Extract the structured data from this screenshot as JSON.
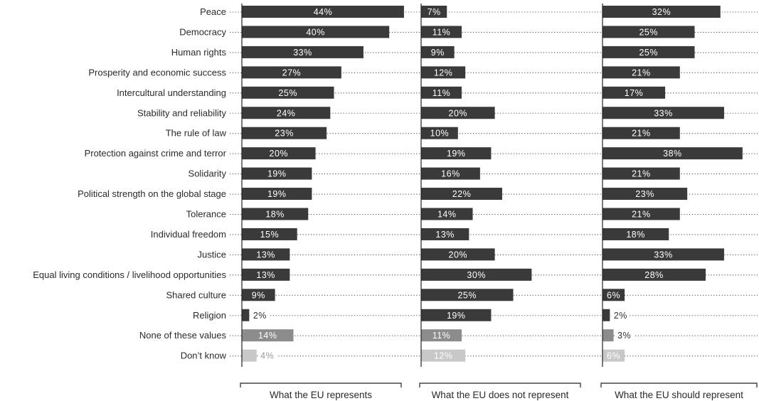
{
  "chart_data": {
    "type": "bar",
    "orientation": "horizontal",
    "value_suffix": "%",
    "grid": "dotted leader lines",
    "legend": "none",
    "categories": [
      "Peace",
      "Democracy",
      "Human rights",
      "Prosperity and economic success",
      "Intercultural understanding",
      "Stability and reliability",
      "The rule of law",
      "Protection against crime and terror",
      "Solidarity",
      "Political strength on the global stage",
      "Tolerance",
      "Individual freedom",
      "Justice",
      "Equal living conditions / livelihood opportunities",
      "Shared culture",
      "Religion",
      "None of these values",
      "Don’t know"
    ],
    "series": [
      {
        "name": "What the EU represents",
        "values": [
          44,
          40,
          33,
          27,
          25,
          24,
          23,
          20,
          19,
          19,
          18,
          15,
          13,
          13,
          9,
          2,
          14,
          4
        ]
      },
      {
        "name": "What the EU does not represent",
        "values": [
          7,
          11,
          9,
          12,
          11,
          20,
          10,
          19,
          16,
          22,
          14,
          13,
          20,
          30,
          25,
          19,
          11,
          12
        ]
      },
      {
        "name": "What the EU should represent",
        "values": [
          32,
          25,
          25,
          21,
          17,
          33,
          21,
          38,
          21,
          23,
          21,
          18,
          33,
          28,
          6,
          2,
          3,
          6
        ]
      }
    ],
    "colors": {
      "main": "#3a3a3a",
      "none_of_these": "#8c8c8c",
      "dont_know": "#c8c8c8",
      "dots": "#555555",
      "label_on_bar": "#ffffff",
      "label_outside": "#333333"
    }
  }
}
